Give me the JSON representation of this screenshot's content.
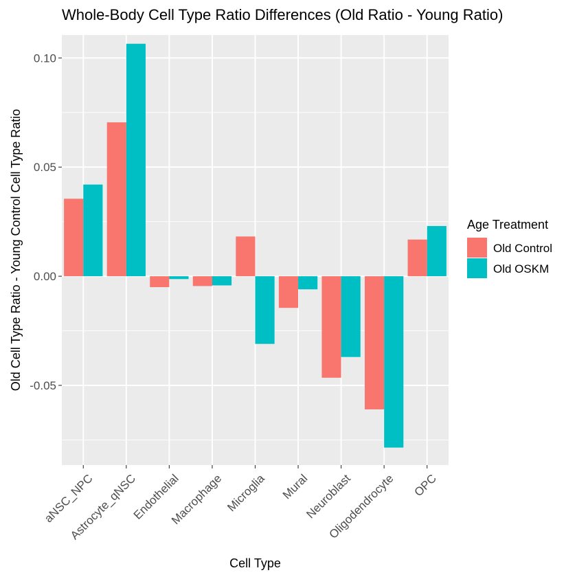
{
  "chart_data": {
    "type": "bar",
    "title": "Whole-Body Cell Type Ratio Differences (Old Ratio - Young Ratio)",
    "xlabel": "Cell Type",
    "ylabel": "Old Cell Type Ratio - Young Control Cell Type Ratio",
    "categories": [
      "aNSC_NPC",
      "Astrocyte_qNSC",
      "Endothelial",
      "Macrophage",
      "Microglia",
      "Mural",
      "Neuroblast",
      "Oligodendrocyte",
      "OPC"
    ],
    "series": [
      {
        "name": "Old Control",
        "color": "#F8766D",
        "values": [
          0.0355,
          0.0705,
          -0.005,
          -0.0045,
          0.0182,
          -0.0145,
          -0.0465,
          -0.061,
          0.0168
        ]
      },
      {
        "name": "Old OSKM",
        "color": "#00BFC4",
        "values": [
          0.042,
          0.1065,
          -0.0013,
          -0.0042,
          -0.031,
          -0.006,
          -0.037,
          -0.0785,
          0.023
        ]
      }
    ],
    "ylim": [
      -0.0865,
      0.1105
    ],
    "yticks": [
      -0.05,
      0.0,
      0.05,
      0.1
    ],
    "ytick_labels": [
      "-0.05",
      "0.00",
      "0.05",
      "0.10"
    ],
    "legend": {
      "title": "Age Treatment",
      "position": "right"
    },
    "grid": true,
    "panel_background": "#EBEBEB",
    "grid_color": "#FFFFFF"
  }
}
